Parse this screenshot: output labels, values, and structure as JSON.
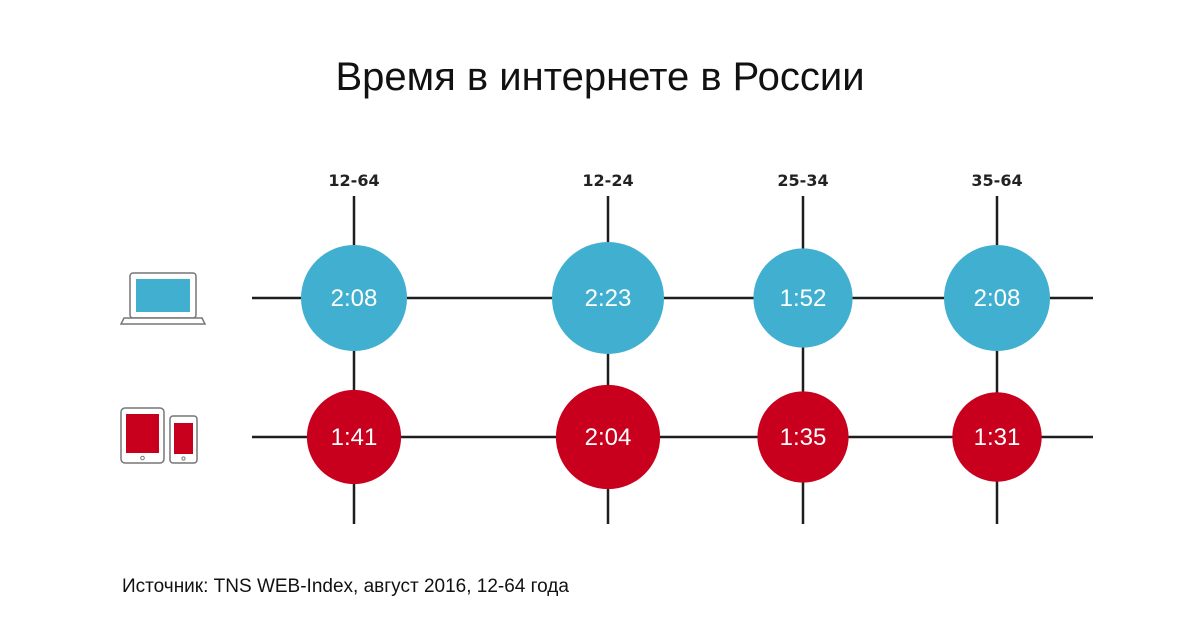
{
  "title": "Время в интернете в России",
  "source": "Источник: TNS WEB-Index, август 2016, 12-64 года",
  "colors": {
    "desktop": "#41b0d0",
    "mobile": "#c8001e",
    "line": "#1e1e1e"
  },
  "chart_data": {
    "type": "bubble-grid",
    "title": "Время в интернете в России",
    "categories": [
      "12-64",
      "12-24",
      "25-34",
      "35-64"
    ],
    "series": [
      {
        "device_icon": "laptop-icon",
        "color": "#41b0d0",
        "labels": [
          "2:08",
          "2:23",
          "1:52",
          "2:08"
        ],
        "values_minutes": [
          128,
          143,
          112,
          128
        ]
      },
      {
        "device_icon": "tablet-and-phone-icon",
        "color": "#c8001e",
        "labels": [
          "1:41",
          "2:04",
          "1:35",
          "1:31"
        ],
        "values_minutes": [
          101,
          124,
          95,
          91
        ]
      }
    ]
  }
}
